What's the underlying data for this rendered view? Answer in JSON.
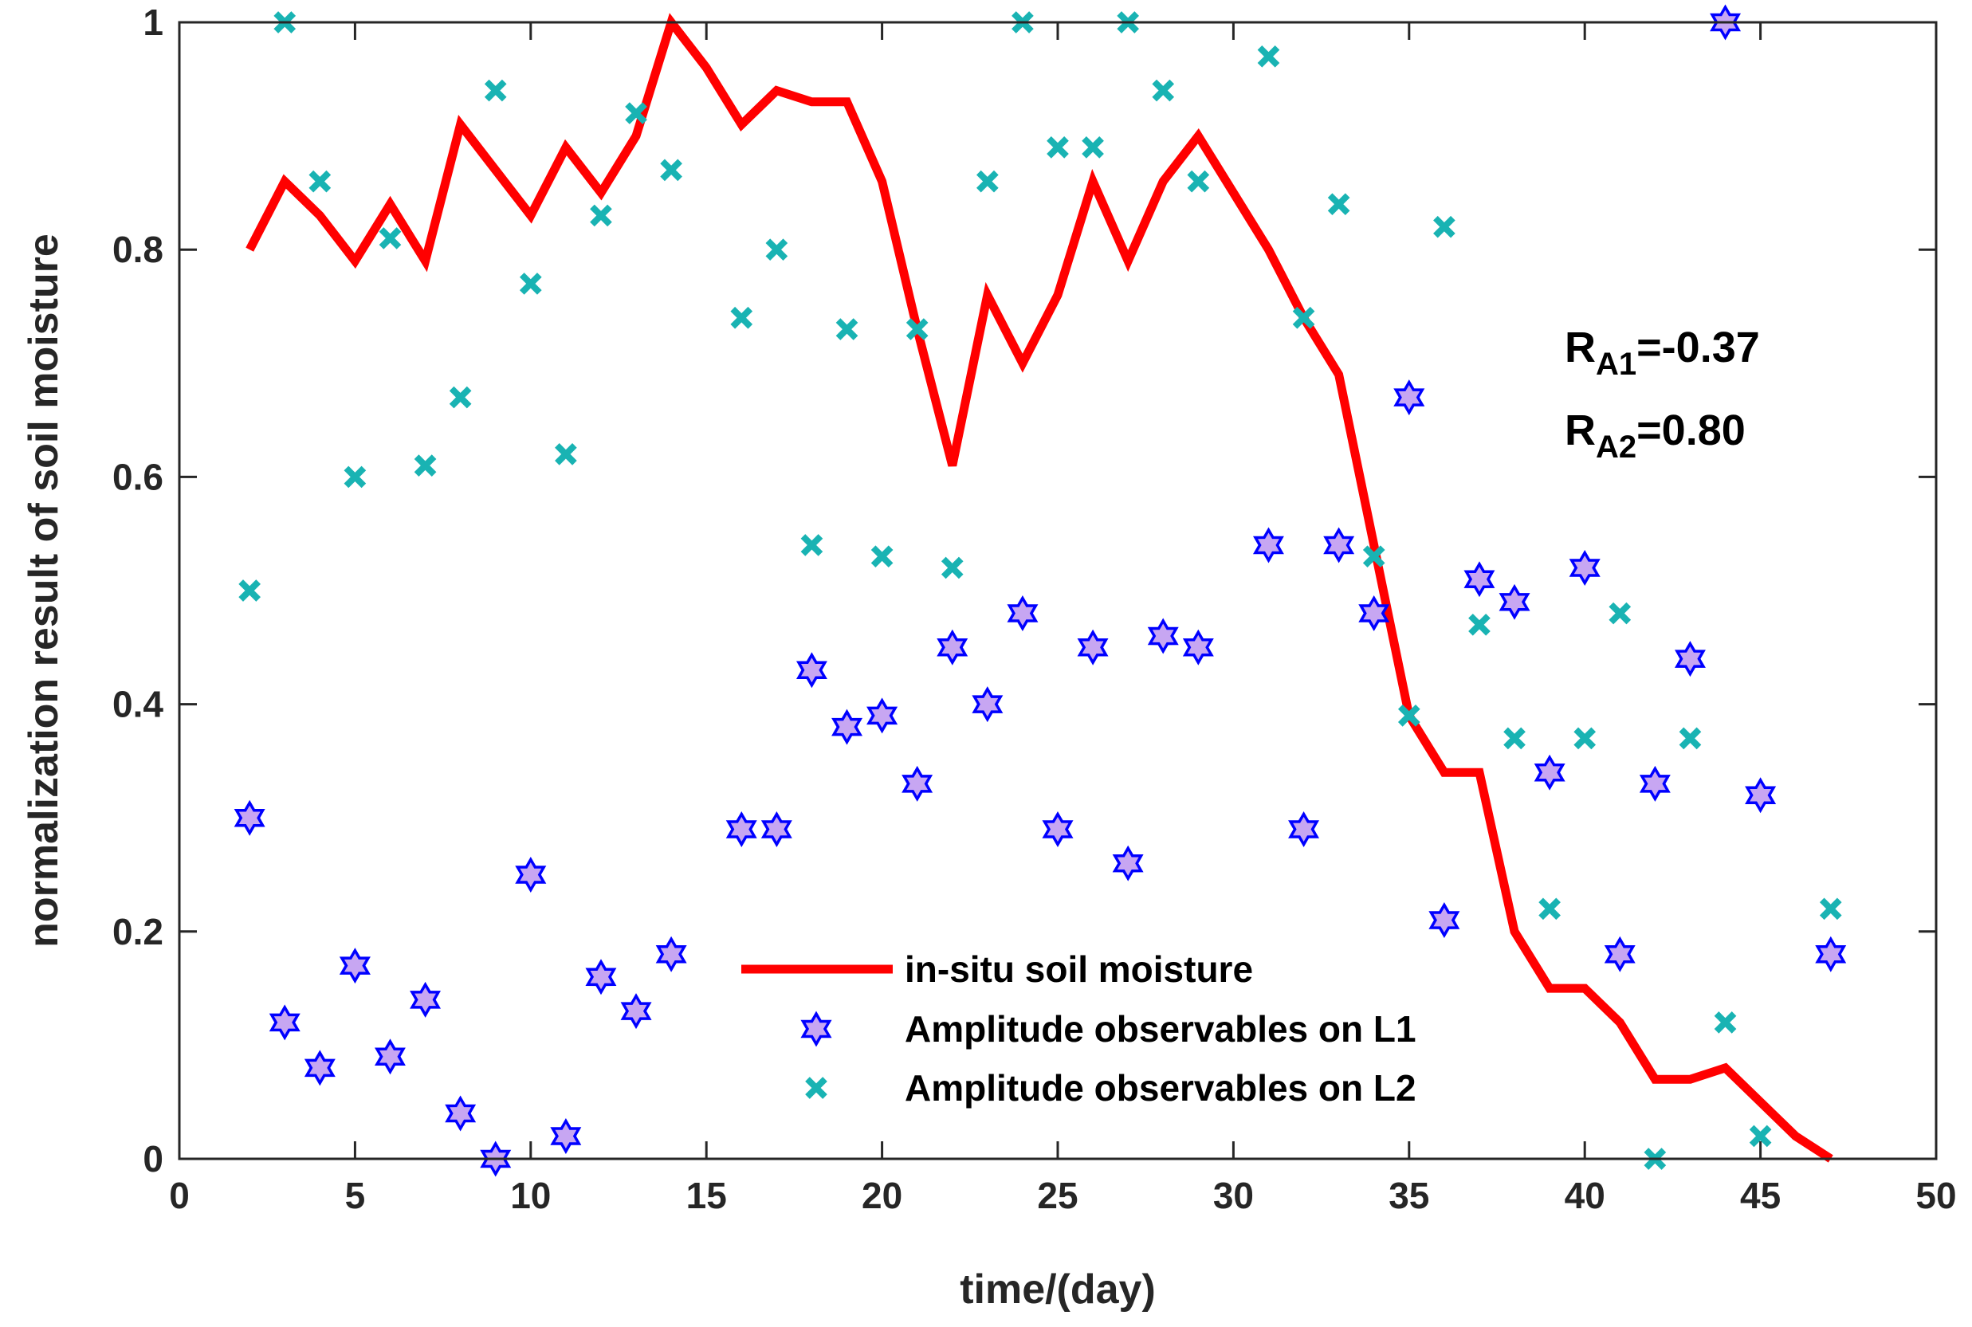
{
  "chart_data": {
    "type": "line",
    "title": "",
    "xlabel": "time/(day)",
    "ylabel": "normalization result of soil moisture",
    "xlim": [
      0,
      50
    ],
    "ylim": [
      0,
      1
    ],
    "xticks": [
      0,
      5,
      10,
      15,
      20,
      25,
      30,
      35,
      40,
      45,
      50
    ],
    "yticks": [
      0,
      0.2,
      0.4,
      0.6,
      0.8,
      1
    ],
    "xtick_labels": [
      "0",
      "5",
      "10",
      "15",
      "20",
      "25",
      "30",
      "35",
      "40",
      "45",
      "50"
    ],
    "ytick_labels": [
      "0",
      "0.2",
      "0.4",
      "0.6",
      "0.8",
      "1"
    ],
    "grid": false,
    "legend_placement": "bottom-center",
    "series": [
      {
        "name": "in-situ soil moisture",
        "style": "line",
        "color": "#ff0000",
        "x": [
          2,
          3,
          4,
          5,
          6,
          7,
          8,
          9,
          10,
          11,
          12,
          13,
          14,
          15,
          16,
          17,
          18,
          19,
          20,
          21,
          22,
          23,
          24,
          25,
          26,
          27,
          28,
          29,
          30,
          31,
          32,
          33,
          34,
          35,
          36,
          37,
          38,
          39,
          40,
          41,
          42,
          43,
          44,
          45,
          46,
          47
        ],
        "y": [
          0.8,
          0.86,
          0.83,
          0.79,
          0.84,
          0.79,
          0.91,
          0.87,
          0.83,
          0.89,
          0.85,
          0.9,
          1.0,
          0.96,
          0.91,
          0.94,
          0.93,
          0.93,
          0.86,
          0.73,
          0.61,
          0.76,
          0.7,
          0.76,
          0.86,
          0.79,
          0.86,
          0.9,
          0.85,
          0.8,
          0.74,
          0.69,
          0.54,
          0.39,
          0.34,
          0.34,
          0.2,
          0.15,
          0.15,
          0.12,
          0.07,
          0.07,
          0.08,
          0.05,
          0.02,
          0.0
        ]
      },
      {
        "name": "Amplitude observables on L1",
        "style": "marker-hexagram",
        "color": "#0000ff",
        "fill": "#c7a6f2",
        "x": [
          2,
          3,
          4,
          5,
          6,
          7,
          8,
          9,
          10,
          11,
          12,
          13,
          14,
          16,
          17,
          18,
          19,
          20,
          21,
          22,
          23,
          24,
          25,
          26,
          27,
          28,
          29,
          31,
          32,
          33,
          34,
          35,
          36,
          37,
          38,
          39,
          40,
          41,
          42,
          43,
          44,
          45,
          47
        ],
        "y": [
          0.3,
          0.12,
          0.08,
          0.17,
          0.09,
          0.14,
          0.04,
          0.0,
          0.25,
          0.02,
          0.16,
          0.13,
          0.18,
          0.29,
          0.29,
          0.43,
          0.38,
          0.39,
          0.33,
          0.45,
          0.4,
          0.48,
          0.29,
          0.45,
          0.26,
          0.46,
          0.45,
          0.54,
          0.29,
          0.54,
          0.48,
          0.67,
          0.21,
          0.51,
          0.49,
          0.34,
          0.52,
          0.18,
          0.33,
          0.44,
          1.0,
          0.32,
          0.18
        ]
      },
      {
        "name": "Amplitude observables on L2",
        "style": "marker-x",
        "color": "#19b3b3",
        "x": [
          2,
          3,
          4,
          5,
          6,
          7,
          8,
          9,
          10,
          11,
          12,
          13,
          14,
          16,
          17,
          18,
          19,
          20,
          21,
          22,
          23,
          24,
          25,
          26,
          27,
          28,
          29,
          31,
          32,
          33,
          34,
          35,
          36,
          37,
          38,
          39,
          40,
          41,
          42,
          43,
          44,
          45,
          47
        ],
        "y": [
          0.5,
          1.0,
          0.86,
          0.6,
          0.81,
          0.61,
          0.67,
          0.94,
          0.77,
          0.62,
          0.83,
          0.92,
          0.87,
          0.74,
          0.8,
          0.54,
          0.73,
          0.53,
          0.73,
          0.52,
          0.86,
          1.0,
          0.89,
          0.89,
          1.0,
          0.94,
          0.86,
          0.97,
          0.74,
          0.84,
          0.53,
          0.39,
          0.82,
          0.47,
          0.37,
          0.22,
          0.37,
          0.48,
          0.0,
          0.37,
          0.12,
          0.02,
          0.22
        ]
      }
    ],
    "annotations": [
      {
        "base": "R",
        "sub": "A1",
        "text": "=-0.37"
      },
      {
        "base": "R",
        "sub": "A2",
        "text": "=0.80"
      }
    ]
  }
}
